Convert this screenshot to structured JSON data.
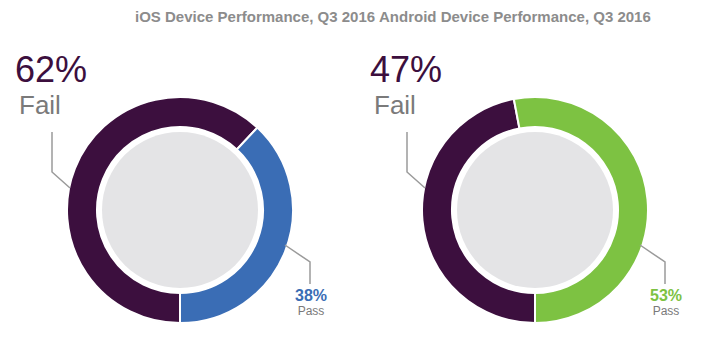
{
  "chart_data": [
    {
      "type": "pie",
      "title": "iOS Device Performance, Q3 2016",
      "categories": [
        "Fail",
        "Pass"
      ],
      "values": [
        62,
        38
      ],
      "value_labels": [
        "62%",
        "38%"
      ],
      "colors": [
        "#3c0f3e",
        "#3a6db5"
      ],
      "data_labels": true
    },
    {
      "type": "pie",
      "title": "Android Device Performance, Q3 2016",
      "categories": [
        "Fail",
        "Pass"
      ],
      "values": [
        47,
        53
      ],
      "value_labels": [
        "47%",
        "53%"
      ],
      "colors": [
        "#3c0f3e",
        "#7dc242"
      ],
      "data_labels": true
    }
  ]
}
